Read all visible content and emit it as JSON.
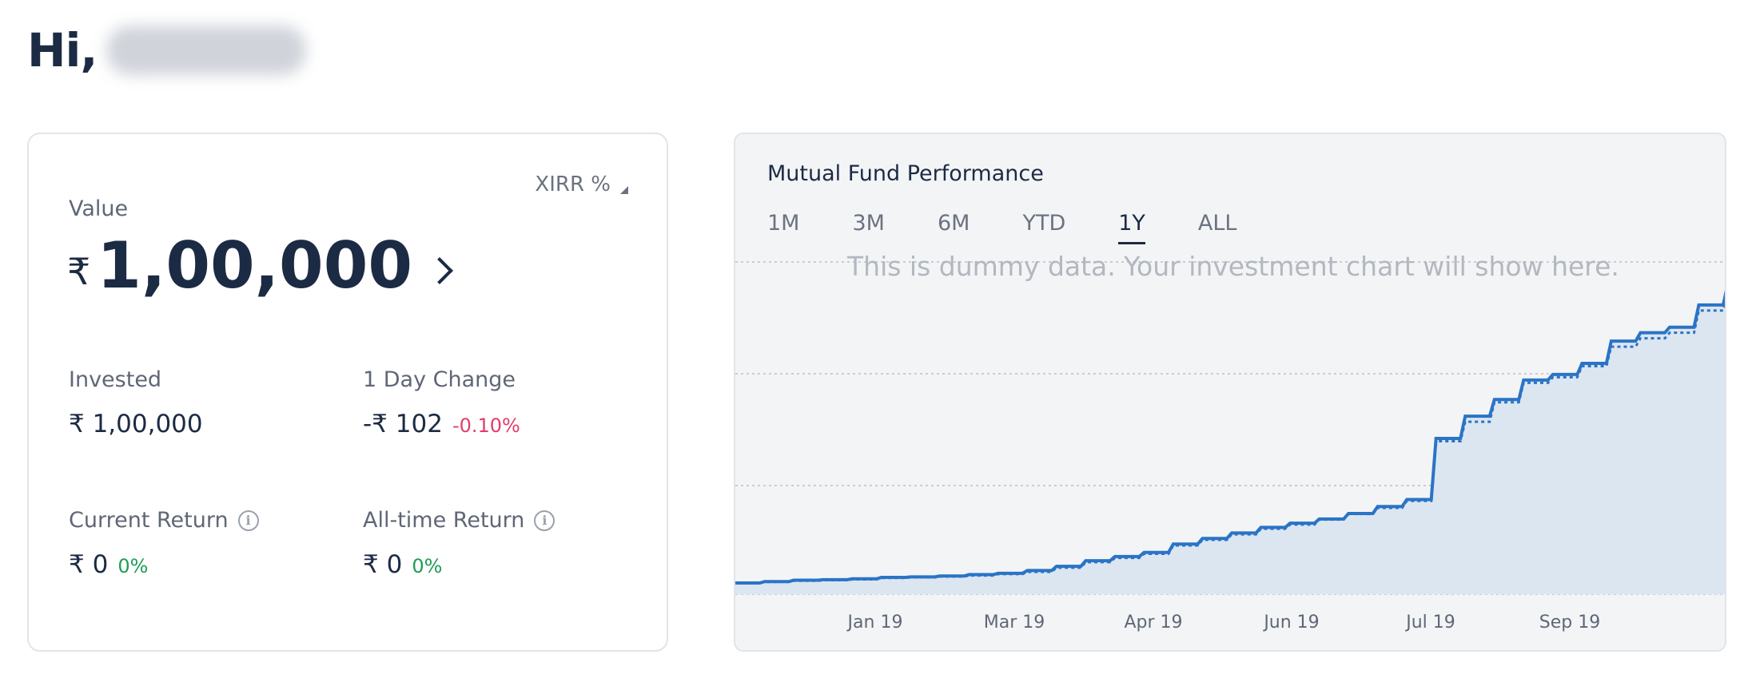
{
  "greeting": {
    "prefix": "Hi,"
  },
  "summary": {
    "xirr_label": "XIRR %",
    "value_label": "Value",
    "currency": "₹",
    "value_amount": "1,00,000",
    "invested": {
      "label": "Invested",
      "value": "₹ 1,00,000"
    },
    "day_change": {
      "label": "1 Day Change",
      "value": "-₹  102",
      "pct": "-0.10%"
    },
    "current_return": {
      "label": "Current Return",
      "value": "₹  0",
      "pct": "0%"
    },
    "alltime_return": {
      "label": "All-time Return",
      "value": "₹ 0",
      "pct": "0%"
    },
    "info_icon": "i"
  },
  "chart": {
    "title": "Mutual Fund Performance",
    "tabs": [
      "1M",
      "3M",
      "6M",
      "YTD",
      "1Y",
      "ALL"
    ],
    "active_tab": "1Y",
    "dummy_message": "This is dummy data. Your investment chart will show here.",
    "colors": {
      "line": "#2a74c6",
      "fill": "#dce6f1",
      "grid": "#c9ccd2"
    }
  },
  "chart_data": {
    "type": "area",
    "x_tick_labels": [
      "Jan 19",
      "Mar 19",
      "Apr 19",
      "Jun 19",
      "Jul 19",
      "Sep 19"
    ],
    "y_tick_labels": [],
    "grid": "horizontal dotted",
    "series": [
      {
        "style": "solid",
        "values": [
          0.0,
          0.005,
          0.01,
          0.012,
          0.015,
          0.02,
          0.022,
          0.025,
          0.03,
          0.035,
          0.045,
          0.06,
          0.08,
          0.095,
          0.11,
          0.14,
          0.16,
          0.18,
          0.2,
          0.215,
          0.23,
          0.25,
          0.275,
          0.3,
          0.52,
          0.6,
          0.66,
          0.73,
          0.75,
          0.79,
          0.87,
          0.9,
          0.92,
          1.0,
          1.08
        ]
      },
      {
        "style": "dotted",
        "values": [
          0.0,
          0.004,
          0.008,
          0.01,
          0.013,
          0.018,
          0.02,
          0.023,
          0.027,
          0.032,
          0.04,
          0.055,
          0.075,
          0.09,
          0.105,
          0.135,
          0.155,
          0.175,
          0.195,
          0.21,
          0.228,
          0.248,
          0.27,
          0.295,
          0.51,
          0.58,
          0.65,
          0.72,
          0.74,
          0.78,
          0.85,
          0.88,
          0.9,
          0.98,
          1.05
        ]
      }
    ]
  }
}
